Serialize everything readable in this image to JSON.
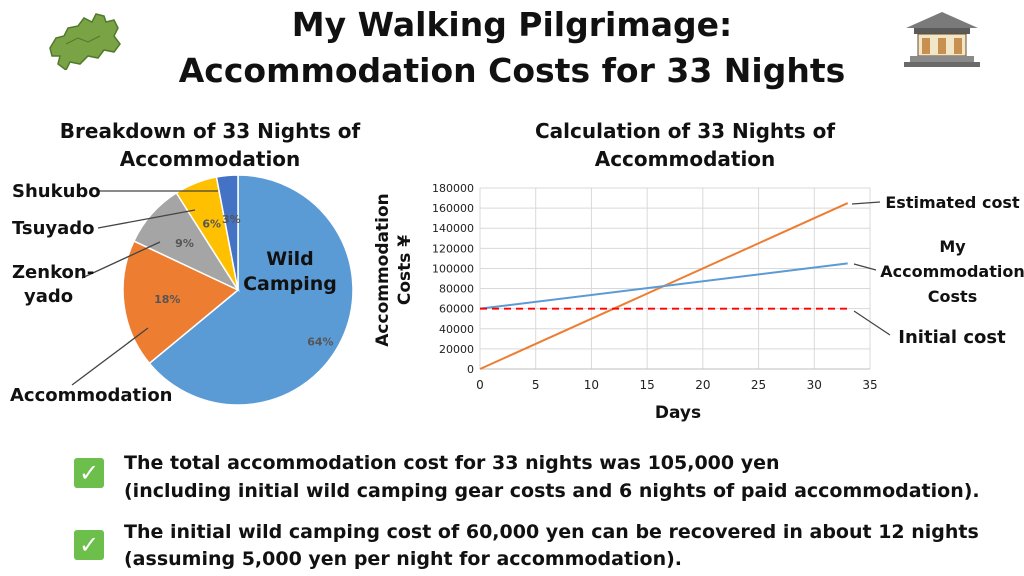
{
  "title": {
    "line1": "My Walking Pilgrimage:",
    "line2": "Accommodation Costs for 33 Nights"
  },
  "icons": {
    "left": "shikoku-map-icon",
    "right": "temple-icon",
    "check": "checkmark-icon"
  },
  "pie": {
    "title_line1": "Breakdown of 33 Nights of",
    "title_line2": "Accommodation",
    "labels": {
      "shukubo": "Shukubo",
      "tsuyado": "Tsuyado",
      "zenkon_line1": "Zenkon-",
      "zenkon_line2": "yado",
      "accommodation": "Accommodation",
      "wild_line1": "Wild",
      "wild_line2": "Camping"
    }
  },
  "line_chart": {
    "title_line1": "Calculation of 33 Nights of",
    "title_line2": "Accommodation",
    "ylabel_line1": "Accommodation",
    "ylabel_line2": "Costs ¥",
    "xlabel": "Days",
    "side_labels": {
      "estimated": "Estimated cost",
      "my_line1": "My",
      "my_line2": "Accommodation",
      "my_line3": "Costs",
      "initial": "Initial cost"
    }
  },
  "bullets": [
    {
      "line1": "The total accommodation cost for 33 nights was 105,000 yen",
      "line2": " (including initial wild camping gear costs and 6 nights of paid accommodation)."
    },
    {
      "line1": "The initial wild camping cost of 60,000 yen can be recovered in about 12 nights",
      "line2": "(assuming 5,000 yen per night for accommodation)."
    }
  ],
  "chart_data": [
    {
      "type": "pie",
      "title": "Breakdown of 33 Nights of Accommodation",
      "categories": [
        "Wild Camping",
        "Accommodation",
        "Zenkon-yado",
        "Tsuyado",
        "Shukubo"
      ],
      "values": [
        64,
        18,
        9,
        6,
        3
      ],
      "value_labels": [
        "64%",
        "18%",
        "9%",
        "6%",
        "3%"
      ],
      "colors": [
        "#5b9bd5",
        "#ed7d31",
        "#a5a5a5",
        "#ffc000",
        "#4472c4"
      ]
    },
    {
      "type": "line",
      "title": "Calculation of 33 Nights of Accommodation",
      "xlabel": "Days",
      "ylabel": "Accommodation Costs ¥",
      "xlim": [
        0,
        35
      ],
      "ylim": [
        0,
        180000
      ],
      "xticks": [
        0,
        5,
        10,
        15,
        20,
        25,
        30,
        35
      ],
      "yticks": [
        0,
        20000,
        40000,
        60000,
        80000,
        100000,
        120000,
        140000,
        160000,
        180000
      ],
      "grid": true,
      "series": [
        {
          "name": "Estimated cost",
          "color": "#ed7d31",
          "style": "solid",
          "x": [
            0,
            33
          ],
          "y": [
            0,
            165000
          ]
        },
        {
          "name": "My Accommodation Costs",
          "color": "#5b9bd5",
          "style": "solid",
          "x": [
            0,
            33
          ],
          "y": [
            60000,
            105000
          ]
        },
        {
          "name": "Initial cost",
          "color": "#ff0000",
          "style": "dashed",
          "x": [
            0,
            33
          ],
          "y": [
            60000,
            60000
          ]
        }
      ]
    }
  ]
}
